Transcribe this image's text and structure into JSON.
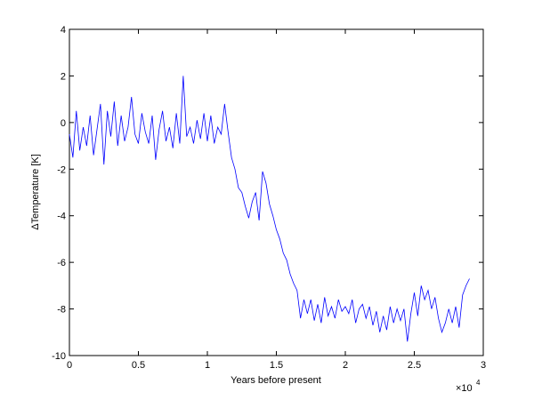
{
  "chart_data": {
    "type": "line",
    "xlabel": "Years before present",
    "ylabel": "ΔTemperature  [K]",
    "x_multiplier": "×10",
    "x_multiplier_exponent": "4",
    "color": "#0000ff",
    "xlim": [
      0,
      30000
    ],
    "ylim": [
      -10,
      4
    ],
    "xticks": [
      0,
      {
        "value": 5000,
        "label": "0.5"
      },
      {
        "value": 10000,
        "label": "1"
      },
      {
        "value": 15000,
        "label": "1.5"
      },
      {
        "value": 20000,
        "label": "2"
      },
      {
        "value": 25000,
        "label": "2.5"
      },
      {
        "value": 30000,
        "label": "3"
      }
    ],
    "yticks": [
      -10,
      -8,
      -6,
      -4,
      -2,
      0,
      2,
      4
    ],
    "x": [
      0,
      250,
      500,
      750,
      1000,
      1250,
      1500,
      1750,
      2000,
      2250,
      2500,
      2750,
      3000,
      3250,
      3500,
      3750,
      4000,
      4250,
      4500,
      4750,
      5000,
      5250,
      5500,
      5750,
      6000,
      6250,
      6500,
      6750,
      7000,
      7250,
      7500,
      7750,
      8000,
      8250,
      8500,
      8750,
      9000,
      9250,
      9500,
      9750,
      10000,
      10250,
      10500,
      10750,
      11000,
      11250,
      11500,
      11750,
      12000,
      12250,
      12500,
      12750,
      13000,
      13250,
      13500,
      13750,
      14000,
      14250,
      14500,
      14750,
      15000,
      15250,
      15500,
      15750,
      16000,
      16250,
      16500,
      16750,
      17000,
      17250,
      17500,
      17750,
      18000,
      18250,
      18500,
      18750,
      19000,
      19250,
      19500,
      19750,
      20000,
      20250,
      20500,
      20750,
      21000,
      21250,
      21500,
      21750,
      22000,
      22250,
      22500,
      22750,
      23000,
      23250,
      23500,
      23750,
      24000,
      24250,
      24500,
      24750,
      25000,
      25250,
      25500,
      25750,
      26000,
      26250,
      26500,
      26750,
      27000,
      27250,
      27500,
      27750,
      28000,
      28250,
      28500,
      28750,
      29000
    ],
    "values": [
      -0.5,
      -1.5,
      0.5,
      -1.2,
      -0.2,
      -1.0,
      0.3,
      -1.4,
      -0.3,
      0.8,
      -1.8,
      0.5,
      -0.6,
      0.9,
      -1.0,
      0.3,
      -0.8,
      -0.2,
      1.1,
      -0.5,
      -0.9,
      0.4,
      -0.4,
      -0.9,
      0.3,
      -1.6,
      -0.3,
      0.5,
      -0.8,
      -0.2,
      -1.1,
      0.4,
      -0.9,
      2.0,
      -0.6,
      -0.2,
      -0.9,
      0.1,
      -0.7,
      0.4,
      -0.8,
      0.3,
      -0.9,
      -0.2,
      -0.5,
      0.8,
      -0.4,
      -1.5,
      -2.0,
      -2.8,
      -3.0,
      -3.6,
      -4.1,
      -3.4,
      -3.0,
      -4.2,
      -2.1,
      -2.6,
      -3.5,
      -4.0,
      -4.6,
      -5.0,
      -5.6,
      -5.9,
      -6.5,
      -6.9,
      -7.2,
      -8.4,
      -7.6,
      -8.2,
      -7.6,
      -8.5,
      -7.8,
      -8.6,
      -7.5,
      -8.3,
      -7.9,
      -8.4,
      -7.6,
      -8.1,
      -7.9,
      -8.2,
      -7.6,
      -8.6,
      -8.0,
      -7.8,
      -8.4,
      -7.9,
      -8.7,
      -8.1,
      -9.0,
      -8.3,
      -8.9,
      -7.9,
      -8.6,
      -8.0,
      -8.5,
      -8.0,
      -9.4,
      -8.2,
      -7.3,
      -8.3,
      -7.0,
      -7.6,
      -7.2,
      -8.0,
      -7.5,
      -8.4,
      -9.0,
      -8.6,
      -8.0,
      -8.6,
      -7.9,
      -8.8,
      -7.4,
      -7.0,
      -6.7
    ]
  }
}
